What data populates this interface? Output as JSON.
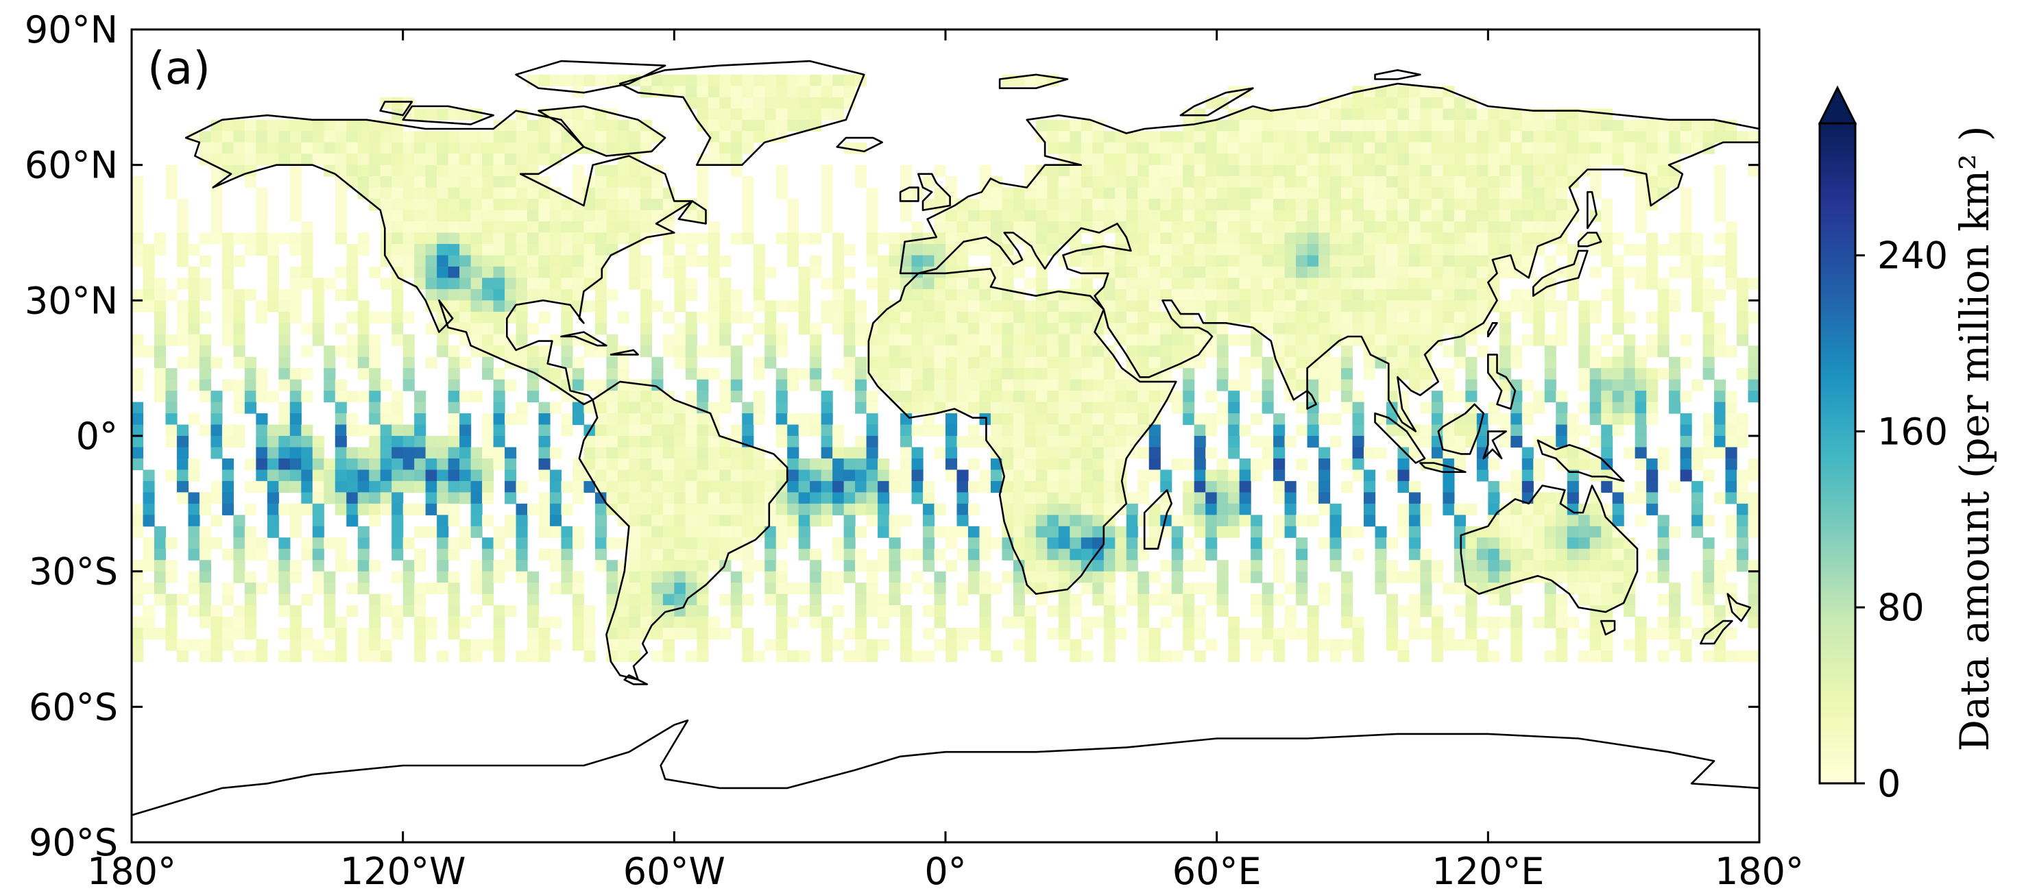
{
  "panel_label": "(a)",
  "colorbar": {
    "title": "Data amount (per million km² )",
    "ticks": [
      0,
      80,
      160,
      240
    ],
    "tick_labels": [
      "0",
      "80",
      "160",
      "240"
    ],
    "min": 0,
    "max": 300,
    "extend": "max",
    "colormap": [
      "#ffffd9",
      "#edf8b1",
      "#c7e9b4",
      "#7fcdbb",
      "#41b6c4",
      "#1d91c0",
      "#225ea8",
      "#253494",
      "#081d58"
    ]
  },
  "map": {
    "projection": "PlateCarree",
    "x_ticks": [
      -180,
      -120,
      -60,
      0,
      60,
      120,
      180
    ],
    "x_tick_labels": [
      "180°",
      "120°W",
      "60°W",
      "0°",
      "60°E",
      "120°E",
      "180°"
    ],
    "y_ticks": [
      90,
      60,
      30,
      0,
      -30,
      -60,
      -90
    ],
    "y_tick_labels": [
      "90°N",
      "60°N",
      "30°N",
      "0°",
      "30°S",
      "60°S",
      "90°S"
    ],
    "lon_range": [
      -180,
      180
    ],
    "lat_range": [
      -90,
      90
    ],
    "coastline_color": "#000000"
  },
  "chart_data": {
    "type": "heatmap",
    "title": "",
    "xlabel": "",
    "ylabel": "",
    "xlim": [
      -180,
      180
    ],
    "ylim": [
      -90,
      90
    ],
    "grid": false,
    "cell_size_deg": 2.5,
    "data_extent_lat": [
      -50,
      80
    ],
    "hotspots": [
      {
        "lon": -145,
        "lat": -5,
        "value": 270
      },
      {
        "lon": -130,
        "lat": -10,
        "value": 260
      },
      {
        "lon": -120,
        "lat": -5,
        "value": 250
      },
      {
        "lon": -108,
        "lat": -8,
        "value": 240
      },
      {
        "lon": -110,
        "lat": 37,
        "value": 250
      },
      {
        "lon": -100,
        "lat": 32,
        "value": 160
      },
      {
        "lon": -30,
        "lat": -12,
        "value": 240
      },
      {
        "lon": -20,
        "lat": -10,
        "value": 220
      },
      {
        "lon": 25,
        "lat": -22,
        "value": 200
      },
      {
        "lon": 32,
        "lat": -25,
        "value": 260
      },
      {
        "lon": 140,
        "lat": -22,
        "value": 160
      },
      {
        "lon": 120,
        "lat": -28,
        "value": 150
      },
      {
        "lon": 150,
        "lat": 10,
        "value": 150
      },
      {
        "lon": 80,
        "lat": 40,
        "value": 140
      },
      {
        "lon": -60,
        "lat": -35,
        "value": 160
      },
      {
        "lon": 60,
        "lat": -15,
        "value": 160
      },
      {
        "lon": -5,
        "lat": 38,
        "value": 140
      }
    ]
  }
}
